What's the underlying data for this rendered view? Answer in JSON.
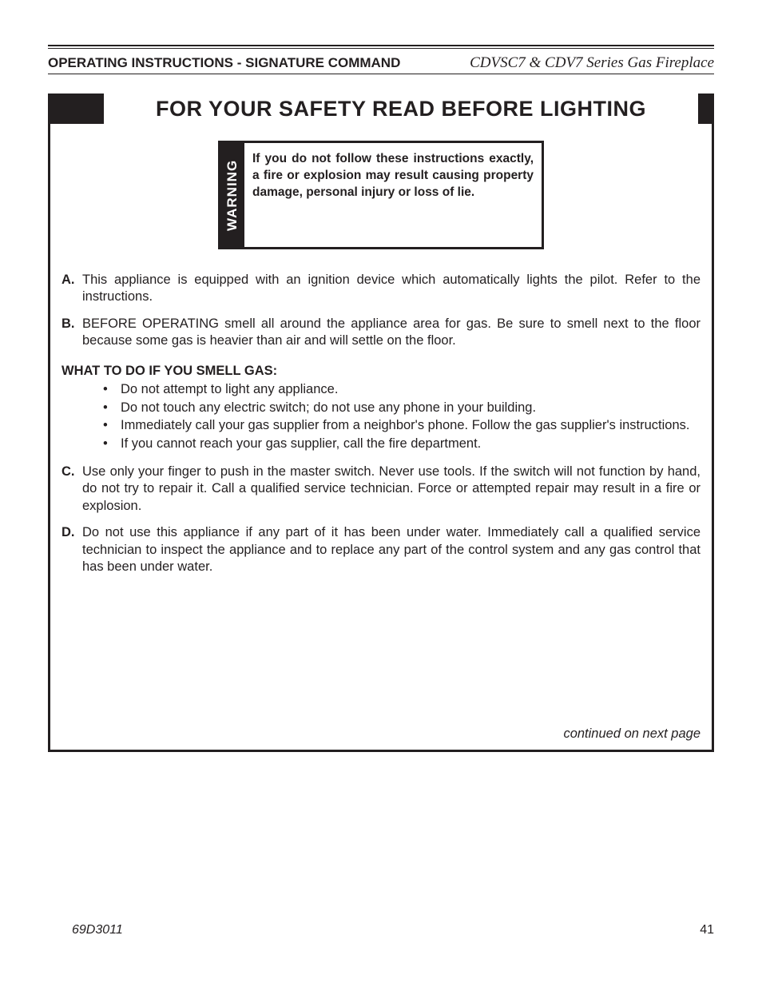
{
  "header": {
    "left": "OPERATING INSTRUCTIONS - SIGNATURE COMMAND",
    "right": "CDVSC7 & CDV7 Series Gas Fireplace"
  },
  "title": "FOR YOUR SAFETY READ BEFORE LIGHTING",
  "warning": {
    "label": "WARNING",
    "text": "If you do not follow these instructions exactly, a fire or explosion may result causing property damage, personal injury or loss of lie."
  },
  "items": {
    "a": {
      "letter": "A.",
      "text": "This appliance is equipped with an ignition device which automatically lights the pilot. Refer to the instructions."
    },
    "b": {
      "letter": "B.",
      "text": "BEFORE OPERATING smell all around the appliance area for gas. Be sure to smell next to the floor because some gas is heavier than air and will settle on the floor."
    },
    "c": {
      "letter": "C.",
      "text": "Use only your finger to push in the master switch. Never use tools. If the switch will not function by hand, do not try to repair it. Call a qualified service technician. Force or attempted repair may result in a fire or explosion."
    },
    "d": {
      "letter": "D.",
      "text": "Do not use this appliance if any part of it has been under water. Immediately call a qualified service technician to inspect the appliance and to replace any part of the control system and any gas control that has been under water."
    }
  },
  "smell_heading": "WHAT TO DO IF YOU SMELL GAS:",
  "smell_bullets": [
    "Do not attempt to light any appliance.",
    "Do not touch any electric switch; do not use any phone in your building.",
    "Immediately call your gas supplier from a neighbor's phone. Follow the gas supplier's instructions.",
    "If you cannot reach your gas supplier, call the fire department."
  ],
  "continued": "continued on next page",
  "footer": {
    "doc": "69D3011",
    "page": "41"
  },
  "colors": {
    "text": "#231f20",
    "bg": "#ffffff"
  }
}
